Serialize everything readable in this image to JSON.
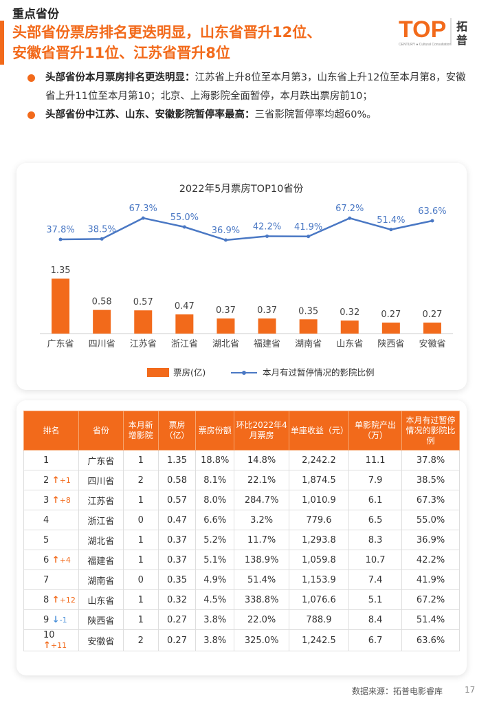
{
  "header": {
    "section": "重点省份",
    "headline_line1": "头部省份票房排名更迭明显，山东省晋升12位、",
    "headline_line2": "安徽省晋升11位、江苏省晋升8位",
    "logo_text": "TOP",
    "logo_sub": "CENTURY ● Cultural Consultation",
    "logo_cn1": "拓",
    "logo_cn2": "普"
  },
  "bullets": [
    {
      "bold": "头部省份本月票房排名更迭明显：",
      "text": "江苏省上升8位至本月第3，山东省上升12位至本月第8，安徽省上升11位至本月第10；北京、上海影院全面暂停，本月跌出票房前10；"
    },
    {
      "bold": "头部省份中江苏、山东、安徽影院暂停率最高：",
      "text": "三省影院暂停率均超60%。"
    }
  ],
  "chart_data": {
    "type": "bar",
    "title": "2022年5月票房TOP10省份",
    "categories": [
      "广东省",
      "四川省",
      "江苏省",
      "浙江省",
      "湖北省",
      "福建省",
      "湖南省",
      "山东省",
      "陕西省",
      "安徽省"
    ],
    "series": [
      {
        "name": "票房(亿)",
        "type": "bar",
        "values": [
          1.35,
          0.58,
          0.57,
          0.47,
          0.37,
          0.37,
          0.35,
          0.32,
          0.27,
          0.27
        ],
        "color": "#f26a1b"
      },
      {
        "name": "本月有过暂停情况的影院比例",
        "type": "line",
        "values": [
          37.8,
          38.5,
          67.3,
          55.0,
          36.9,
          42.2,
          41.9,
          67.2,
          51.4,
          63.6
        ],
        "labels": [
          "37.8%",
          "38.5%",
          "67.3%",
          "55.0%",
          "36.9%",
          "42.2%",
          "41.9%",
          "67.2%",
          "51.4%",
          "63.6%"
        ],
        "color": "#4a78c4"
      }
    ],
    "legend_position": "bottom"
  },
  "table": {
    "headers": [
      "排名",
      "省份",
      "本月新增影院",
      "票房（亿）",
      "票房份额",
      "环比2022年4月票房",
      "单座收益（元）",
      "单影院产出（万）",
      "本月有过暂停情况的影院比例"
    ],
    "rows": [
      {
        "rank": "1",
        "change": "",
        "dir": "",
        "cells": [
          "广东省",
          "1",
          "1.35",
          "18.8%",
          "14.8%",
          "2,242.2",
          "11.1",
          "37.8%"
        ]
      },
      {
        "rank": "2",
        "change": "+1",
        "dir": "up",
        "cells": [
          "四川省",
          "2",
          "0.58",
          "8.1%",
          "22.1%",
          "1,874.5",
          "7.9",
          "38.5%"
        ]
      },
      {
        "rank": "3",
        "change": "+8",
        "dir": "up",
        "cells": [
          "江苏省",
          "1",
          "0.57",
          "8.0%",
          "284.7%",
          "1,010.9",
          "6.1",
          "67.3%"
        ]
      },
      {
        "rank": "4",
        "change": "",
        "dir": "",
        "cells": [
          "浙江省",
          "0",
          "0.47",
          "6.6%",
          "3.2%",
          "779.6",
          "6.5",
          "55.0%"
        ]
      },
      {
        "rank": "5",
        "change": "",
        "dir": "",
        "cells": [
          "湖北省",
          "1",
          "0.37",
          "5.2%",
          "11.7%",
          "1,293.8",
          "8.3",
          "36.9%"
        ]
      },
      {
        "rank": "6",
        "change": "+4",
        "dir": "up",
        "cells": [
          "福建省",
          "1",
          "0.37",
          "5.1%",
          "138.9%",
          "1,059.8",
          "10.7",
          "42.2%"
        ]
      },
      {
        "rank": "7",
        "change": "",
        "dir": "",
        "cells": [
          "湖南省",
          "0",
          "0.35",
          "4.9%",
          "51.4%",
          "1,153.9",
          "7.4",
          "41.9%"
        ]
      },
      {
        "rank": "8",
        "change": "+12",
        "dir": "up",
        "cells": [
          "山东省",
          "1",
          "0.32",
          "4.5%",
          "338.8%",
          "1,076.6",
          "5.1",
          "67.2%"
        ]
      },
      {
        "rank": "9",
        "change": "-1",
        "dir": "down",
        "cells": [
          "陕西省",
          "1",
          "0.27",
          "3.8%",
          "22.0%",
          "788.9",
          "8.4",
          "51.4%"
        ]
      },
      {
        "rank": "10",
        "change": "+11",
        "dir": "up",
        "cells": [
          "安徽省",
          "2",
          "0.27",
          "3.8%",
          "325.0%",
          "1,242.5",
          "6.7",
          "63.6%"
        ]
      }
    ]
  },
  "footer": {
    "source": "数据来源：拓普电影睿库",
    "page": "17"
  }
}
